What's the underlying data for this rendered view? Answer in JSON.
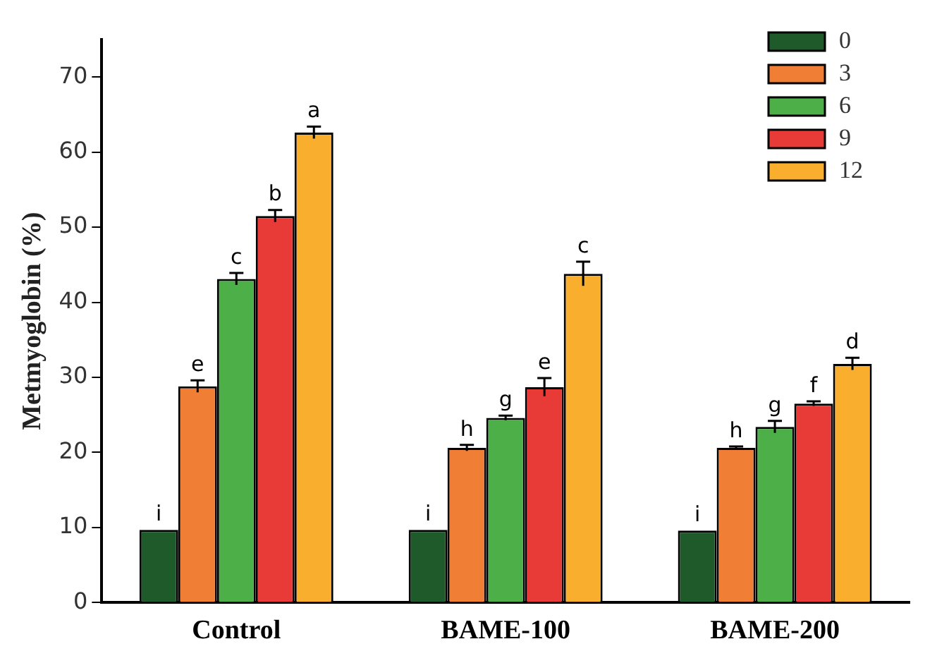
{
  "chart_data": {
    "type": "bar",
    "ylabel": "Metmyoglobin (%)",
    "categories": [
      "Control",
      "BAME-100",
      "BAME-200"
    ],
    "ylim": [
      0,
      75
    ],
    "yticks": [
      0,
      10,
      20,
      30,
      40,
      50,
      60,
      70
    ],
    "grid": false,
    "legend": "top right",
    "series": [
      {
        "name": "0",
        "color": "#1e5a2a",
        "values": [
          9.7,
          9.7,
          9.6
        ],
        "errors": [
          null,
          null,
          null
        ],
        "value_labels": [
          "i",
          "i",
          "i"
        ]
      },
      {
        "name": "3",
        "color": "#f07f35",
        "values": [
          28.8,
          20.6,
          20.6
        ],
        "errors": [
          0.8,
          0.4,
          0.2
        ],
        "value_labels": [
          "e",
          "h",
          "h"
        ]
      },
      {
        "name": "6",
        "color": "#4caf48",
        "values": [
          43.1,
          24.6,
          23.4
        ],
        "errors": [
          0.8,
          0.3,
          0.8
        ],
        "value_labels": [
          "c",
          "g",
          "g"
        ]
      },
      {
        "name": "9",
        "color": "#e83a36",
        "values": [
          51.5,
          28.7,
          26.5
        ],
        "errors": [
          0.8,
          1.2,
          0.3
        ],
        "value_labels": [
          "b",
          "e",
          "f"
        ]
      },
      {
        "name": "12",
        "color": "#f9ae2e",
        "values": [
          62.6,
          43.8,
          31.8
        ],
        "errors": [
          0.8,
          1.6,
          0.8
        ],
        "value_labels": [
          "a",
          "c",
          "d"
        ]
      }
    ]
  }
}
